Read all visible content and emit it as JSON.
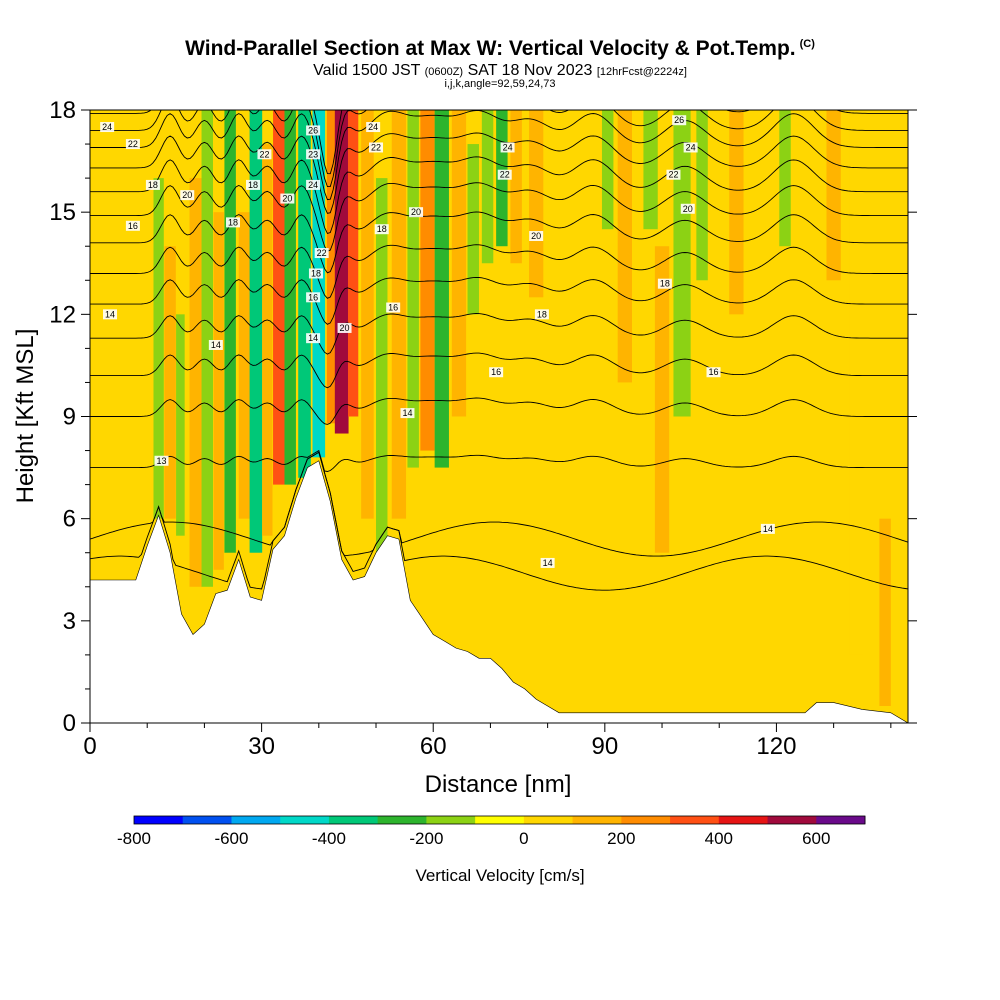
{
  "header": {
    "title": "Wind-Parallel Section at Max W: Vertical Velocity & Pot.Temp.",
    "copyright_mark": "(C)",
    "subtitle_part1": "Valid 1500 JST",
    "subtitle_zulu": "(0600Z)",
    "subtitle_part2": "SAT 18 Nov 2023",
    "subtitle_forecast": "[12hrFcst@2224z]",
    "ijk_note": "i,j,k,angle=92,59,24,73"
  },
  "colors": {
    "background_field": "#ffd700",
    "terrain": "#ffffff",
    "contour": "#000000"
  },
  "chart_data": {
    "type": "heatmap",
    "title": "Wind-Parallel Section at Max W: Vertical Velocity & Pot.Temp.",
    "xlabel": "Distance [nm]",
    "ylabel": "Height [Kft MSL]",
    "xlim": [
      0,
      143
    ],
    "ylim": [
      0,
      18
    ],
    "x_ticks": [
      0,
      30,
      60,
      90,
      120
    ],
    "y_ticks": [
      0,
      3,
      6,
      9,
      12,
      15,
      18
    ],
    "colorbar": {
      "label": "Vertical Velocity [cm/s]",
      "tick_values": [
        -800,
        -600,
        -400,
        -200,
        0,
        200,
        400,
        600
      ],
      "colors": [
        "#0000ff",
        "#0050f0",
        "#00a8f0",
        "#00d8c8",
        "#00c878",
        "#2db42d",
        "#8cd214",
        "#ffff00",
        "#ffd700",
        "#ffb400",
        "#ff8c00",
        "#ff5014",
        "#e61414",
        "#a00a3c",
        "#6a0a8a"
      ]
    },
    "terrain_profile": {
      "x": [
        0,
        8,
        10,
        12,
        14,
        16,
        18,
        20,
        22,
        24,
        26,
        28,
        30,
        32,
        34,
        36,
        38,
        40,
        42,
        44,
        46,
        48,
        50,
        52,
        54,
        56,
        58,
        60,
        62,
        64,
        66,
        68,
        70,
        72,
        74,
        76,
        78,
        80,
        82,
        84,
        88,
        95,
        100,
        110,
        120,
        125,
        127,
        130,
        135,
        140,
        143
      ],
      "height": [
        4.2,
        4.2,
        5.2,
        6.1,
        5.0,
        3.2,
        2.6,
        2.9,
        3.8,
        3.9,
        4.8,
        3.7,
        3.6,
        5.1,
        5.5,
        6.6,
        7.5,
        7.7,
        6.5,
        4.8,
        4.2,
        4.3,
        5.0,
        5.5,
        5.4,
        3.6,
        3.1,
        2.6,
        2.4,
        2.2,
        2.1,
        1.9,
        1.9,
        1.6,
        1.2,
        1.0,
        0.7,
        0.5,
        0.3,
        0.3,
        0.3,
        0.3,
        0.3,
        0.3,
        0.3,
        0.3,
        0.6,
        0.6,
        0.4,
        0.3,
        0.0
      ]
    },
    "velocity_columns": [
      {
        "x": 12.0,
        "w": 1.8,
        "top": 16.0,
        "bottom": 6.0,
        "value": -150
      },
      {
        "x": 14.0,
        "w": 2.0,
        "top": 14.0,
        "bottom": 6.0,
        "value": 100
      },
      {
        "x": 15.8,
        "w": 1.5,
        "top": 12.0,
        "bottom": 5.5,
        "value": -200
      },
      {
        "x": 18.5,
        "w": 2.2,
        "top": 16.0,
        "bottom": 4.0,
        "value": 120
      },
      {
        "x": 20.5,
        "w": 2.0,
        "top": 18.0,
        "bottom": 4.0,
        "value": -180
      },
      {
        "x": 22.5,
        "w": 1.8,
        "top": 15.0,
        "bottom": 4.5,
        "value": 130
      },
      {
        "x": 24.5,
        "w": 2.0,
        "top": 18.0,
        "bottom": 5.0,
        "value": -260
      },
      {
        "x": 27.0,
        "w": 2.0,
        "top": 15.0,
        "bottom": 6.0,
        "value": 150
      },
      {
        "x": 29.0,
        "w": 2.2,
        "top": 18.0,
        "bottom": 5.0,
        "value": -320
      },
      {
        "x": 31.0,
        "w": 1.8,
        "top": 17.0,
        "bottom": 5.5,
        "value": 180
      },
      {
        "x": 33.0,
        "w": 2.0,
        "top": 18.0,
        "bottom": 7.0,
        "value": 300
      },
      {
        "x": 35.0,
        "w": 2.0,
        "top": 18.0,
        "bottom": 7.0,
        "value": -280
      },
      {
        "x": 37.5,
        "w": 2.2,
        "top": 18.0,
        "bottom": 7.2,
        "value": -350
      },
      {
        "x": 40.0,
        "w": 2.2,
        "top": 18.0,
        "bottom": 7.8,
        "value": -480
      },
      {
        "x": 42.2,
        "w": 1.6,
        "top": 18.0,
        "bottom": 8.8,
        "value": 250
      },
      {
        "x": 44.0,
        "w": 2.4,
        "top": 18.0,
        "bottom": 8.5,
        "value": 520
      },
      {
        "x": 46.0,
        "w": 1.8,
        "top": 18.0,
        "bottom": 9.0,
        "value": 380
      },
      {
        "x": 48.5,
        "w": 2.2,
        "top": 18.0,
        "bottom": 6.0,
        "value": 140
      },
      {
        "x": 51.0,
        "w": 2.0,
        "top": 16.0,
        "bottom": 5.0,
        "value": -120
      },
      {
        "x": 54.0,
        "w": 2.5,
        "top": 18.0,
        "bottom": 6.0,
        "value": 160
      },
      {
        "x": 56.5,
        "w": 2.0,
        "top": 18.0,
        "bottom": 7.5,
        "value": -150
      },
      {
        "x": 59.0,
        "w": 2.5,
        "top": 18.0,
        "bottom": 8.0,
        "value": 200
      },
      {
        "x": 61.5,
        "w": 2.5,
        "top": 18.0,
        "bottom": 7.5,
        "value": -260
      },
      {
        "x": 64.5,
        "w": 2.5,
        "top": 18.0,
        "bottom": 9.0,
        "value": 150
      },
      {
        "x": 67.0,
        "w": 2.0,
        "top": 17.0,
        "bottom": 12.0,
        "value": -180
      },
      {
        "x": 69.5,
        "w": 2.0,
        "top": 18.0,
        "bottom": 13.5,
        "value": -120
      },
      {
        "x": 72.0,
        "w": 2.0,
        "top": 18.0,
        "bottom": 14.0,
        "value": -220
      },
      {
        "x": 74.5,
        "w": 2.0,
        "top": 18.0,
        "bottom": 13.5,
        "value": 120
      },
      {
        "x": 78.0,
        "w": 2.5,
        "top": 18.0,
        "bottom": 12.5,
        "value": 110
      },
      {
        "x": 83.0,
        "w": 2.5,
        "top": 13.0,
        "bottom": 3.0,
        "value": 80
      },
      {
        "x": 90.5,
        "w": 2.0,
        "top": 18.0,
        "bottom": 14.5,
        "value": -120
      },
      {
        "x": 93.5,
        "w": 2.5,
        "top": 18.0,
        "bottom": 10.0,
        "value": 120
      },
      {
        "x": 98.0,
        "w": 2.5,
        "top": 18.0,
        "bottom": 14.5,
        "value": -120
      },
      {
        "x": 100.0,
        "w": 2.5,
        "top": 14.0,
        "bottom": 5.0,
        "value": 130
      },
      {
        "x": 103.5,
        "w": 3.0,
        "top": 18.0,
        "bottom": 9.0,
        "value": -200
      },
      {
        "x": 107.0,
        "w": 2.0,
        "top": 18.0,
        "bottom": 13.0,
        "value": -120
      },
      {
        "x": 113.0,
        "w": 2.5,
        "top": 18.0,
        "bottom": 12.0,
        "value": 100
      },
      {
        "x": 116.0,
        "w": 2.5,
        "top": 13.0,
        "bottom": 4.0,
        "value": 90
      },
      {
        "x": 121.5,
        "w": 2.0,
        "top": 18.0,
        "bottom": 14.0,
        "value": -120
      },
      {
        "x": 130.0,
        "w": 2.5,
        "top": 18.0,
        "bottom": 13.0,
        "value": 100
      },
      {
        "x": 134.0,
        "w": 2.5,
        "top": 18.0,
        "bottom": 2.0,
        "value": 80
      },
      {
        "x": 139.0,
        "w": 2.0,
        "top": 6.0,
        "bottom": 0.5,
        "value": 100
      }
    ],
    "theta_contours": [
      {
        "level": 12,
        "base": 7.5,
        "amp": 0.6
      },
      {
        "level": 13,
        "base": 9.0,
        "amp": 0.9
      },
      {
        "level": 14,
        "base": 10.2,
        "amp": 1.1
      },
      {
        "level": 15,
        "base": 11.3,
        "amp": 1.2
      },
      {
        "level": 16,
        "base": 12.3,
        "amp": 1.3
      },
      {
        "level": 17,
        "base": 13.2,
        "amp": 1.4
      },
      {
        "level": 18,
        "base": 14.1,
        "amp": 1.5
      },
      {
        "level": 19,
        "base": 14.9,
        "amp": 1.6
      },
      {
        "level": 20,
        "base": 15.6,
        "amp": 1.7
      },
      {
        "level": 21,
        "base": 16.3,
        "amp": 1.7
      },
      {
        "level": 22,
        "base": 16.9,
        "amp": 1.8
      },
      {
        "level": 23,
        "base": 17.4,
        "amp": 1.8
      },
      {
        "level": 24,
        "base": 17.9,
        "amp": 1.8
      }
    ],
    "theta_contour_labels": [
      {
        "text": "24",
        "x": 3,
        "y": 17.5
      },
      {
        "text": "22",
        "x": 7.5,
        "y": 17.0
      },
      {
        "text": "18",
        "x": 11,
        "y": 15.8
      },
      {
        "text": "16",
        "x": 7.5,
        "y": 14.6
      },
      {
        "text": "20",
        "x": 17,
        "y": 15.5
      },
      {
        "text": "18",
        "x": 25,
        "y": 14.7
      },
      {
        "text": "22",
        "x": 30.5,
        "y": 16.7
      },
      {
        "text": "18",
        "x": 28.5,
        "y": 15.8
      },
      {
        "text": "20",
        "x": 34.5,
        "y": 15.4
      },
      {
        "text": "26",
        "x": 39,
        "y": 17.4
      },
      {
        "text": "23",
        "x": 39,
        "y": 16.7
      },
      {
        "text": "24",
        "x": 39,
        "y": 15.8
      },
      {
        "text": "22",
        "x": 40.5,
        "y": 13.8
      },
      {
        "text": "18",
        "x": 39.5,
        "y": 13.2
      },
      {
        "text": "16",
        "x": 39,
        "y": 12.5
      },
      {
        "text": "14",
        "x": 39,
        "y": 11.3
      },
      {
        "text": "20",
        "x": 44.5,
        "y": 11.6
      },
      {
        "text": "24",
        "x": 49.5,
        "y": 17.5
      },
      {
        "text": "22",
        "x": 50,
        "y": 16.9
      },
      {
        "text": "18",
        "x": 51,
        "y": 14.5
      },
      {
        "text": "16",
        "x": 53,
        "y": 12.2
      },
      {
        "text": "20",
        "x": 57,
        "y": 15.0
      },
      {
        "text": "14",
        "x": 55.5,
        "y": 9.1
      },
      {
        "text": "24",
        "x": 73,
        "y": 16.9
      },
      {
        "text": "22",
        "x": 72.5,
        "y": 16.1
      },
      {
        "text": "20",
        "x": 78,
        "y": 14.3
      },
      {
        "text": "18",
        "x": 79,
        "y": 12.0
      },
      {
        "text": "16",
        "x": 71,
        "y": 10.3
      },
      {
        "text": "14",
        "x": 80,
        "y": 4.7
      },
      {
        "text": "26",
        "x": 103,
        "y": 17.7
      },
      {
        "text": "24",
        "x": 105,
        "y": 16.9
      },
      {
        "text": "22",
        "x": 102,
        "y": 16.1
      },
      {
        "text": "20",
        "x": 104.5,
        "y": 15.1
      },
      {
        "text": "18",
        "x": 100.5,
        "y": 12.9
      },
      {
        "text": "16",
        "x": 109,
        "y": 10.3
      },
      {
        "text": "14",
        "x": 118.5,
        "y": 5.7
      },
      {
        "text": "14",
        "x": 3.5,
        "y": 12.0
      },
      {
        "text": "14",
        "x": 22,
        "y": 11.1
      },
      {
        "text": "13",
        "x": 12.5,
        "y": 7.7
      }
    ]
  }
}
